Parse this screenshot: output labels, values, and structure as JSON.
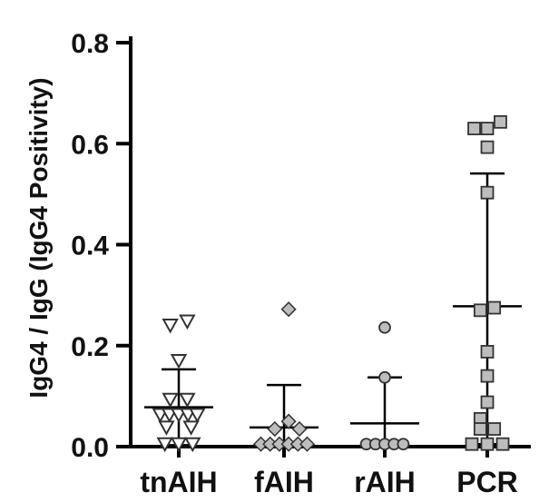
{
  "chart_data": {
    "type": "scatter",
    "ylabel": "IgG4 / IgG (IgG4 Positivity)",
    "ylim": [
      0,
      0.8
    ],
    "yticks": [
      "0.0",
      "0.2",
      "0.4",
      "0.6",
      "0.8"
    ],
    "categories": [
      "tnAIH",
      "fAIH",
      "rAIH",
      "PCR"
    ],
    "grid": false,
    "marker_fill": "#bdbdbd",
    "marker_stroke": "#333333",
    "series": [
      {
        "category": "tnAIH",
        "marker": "triangle-down",
        "mean": 0.078,
        "sd_low": 0.003,
        "sd_high": 0.153,
        "points": [
          {
            "x": -0.11,
            "y": 0.24
          },
          {
            "x": 0.11,
            "y": 0.248
          },
          {
            "x": 0.0,
            "y": 0.17
          },
          {
            "x": -0.11,
            "y": 0.093
          },
          {
            "x": 0.11,
            "y": 0.093
          },
          {
            "x": -0.24,
            "y": 0.063
          },
          {
            "x": -0.12,
            "y": 0.063
          },
          {
            "x": 0.0,
            "y": 0.063
          },
          {
            "x": 0.12,
            "y": 0.063
          },
          {
            "x": 0.24,
            "y": 0.063
          },
          {
            "x": -0.16,
            "y": 0.038
          },
          {
            "x": 0.16,
            "y": 0.038
          },
          {
            "x": -0.18,
            "y": 0.005
          },
          {
            "x": 0.0,
            "y": 0.005
          },
          {
            "x": 0.18,
            "y": 0.005
          }
        ]
      },
      {
        "category": "fAIH",
        "marker": "diamond",
        "mean": 0.038,
        "sd_low": 0.0,
        "sd_high": 0.122,
        "points": [
          {
            "x": 0.06,
            "y": 0.272
          },
          {
            "x": 0.06,
            "y": 0.05
          },
          {
            "x": -0.12,
            "y": 0.035
          },
          {
            "x": 0.2,
            "y": 0.035
          },
          {
            "x": -0.3,
            "y": 0.005
          },
          {
            "x": -0.18,
            "y": 0.005
          },
          {
            "x": -0.06,
            "y": 0.005
          },
          {
            "x": 0.06,
            "y": 0.005
          },
          {
            "x": 0.18,
            "y": 0.005
          },
          {
            "x": 0.3,
            "y": 0.005
          }
        ]
      },
      {
        "category": "rAIH",
        "marker": "circle",
        "mean": 0.046,
        "sd_low": 0.0,
        "sd_high": 0.137,
        "points": [
          {
            "x": 0.0,
            "y": 0.236
          },
          {
            "x": 0.0,
            "y": 0.137
          },
          {
            "x": -0.24,
            "y": 0.005
          },
          {
            "x": -0.12,
            "y": 0.005
          },
          {
            "x": 0.0,
            "y": 0.005
          },
          {
            "x": 0.12,
            "y": 0.005
          },
          {
            "x": 0.24,
            "y": 0.005
          }
        ]
      },
      {
        "category": "PCR",
        "marker": "square",
        "mean": 0.278,
        "sd_low": 0.005,
        "sd_high": 0.541,
        "points": [
          {
            "x": -0.17,
            "y": 0.63
          },
          {
            "x": 0.0,
            "y": 0.63
          },
          {
            "x": 0.17,
            "y": 0.643
          },
          {
            "x": 0.0,
            "y": 0.593
          },
          {
            "x": 0.0,
            "y": 0.503
          },
          {
            "x": 0.09,
            "y": 0.275
          },
          {
            "x": -0.09,
            "y": 0.27
          },
          {
            "x": 0.0,
            "y": 0.188
          },
          {
            "x": 0.0,
            "y": 0.14
          },
          {
            "x": 0.0,
            "y": 0.088
          },
          {
            "x": -0.09,
            "y": 0.055
          },
          {
            "x": -0.09,
            "y": 0.035
          },
          {
            "x": 0.09,
            "y": 0.035
          },
          {
            "x": -0.2,
            "y": 0.005
          },
          {
            "x": 0.0,
            "y": 0.005
          },
          {
            "x": 0.2,
            "y": 0.005
          }
        ]
      }
    ]
  }
}
